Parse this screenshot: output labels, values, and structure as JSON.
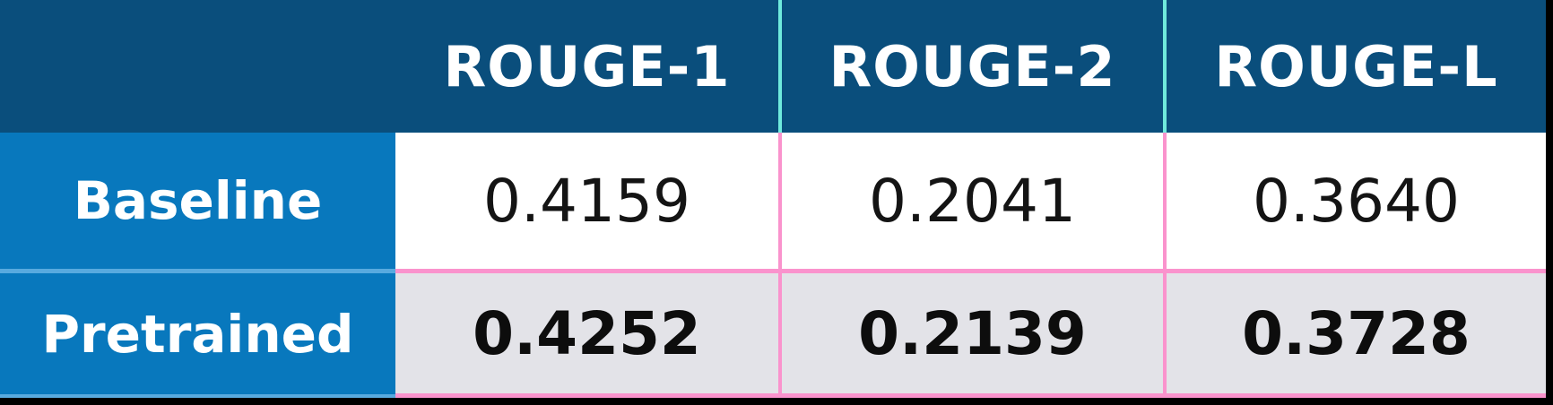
{
  "table": {
    "header": {
      "corner": "",
      "columns": [
        "ROUGE-1",
        "ROUGE-2",
        "ROUGE-L"
      ]
    },
    "rows": [
      {
        "label": "Baseline",
        "values": [
          "0.4159",
          "0.2041",
          "0.3640"
        ]
      },
      {
        "label": "Pretrained",
        "values": [
          "0.4252",
          "0.2139",
          "0.3728"
        ]
      }
    ]
  },
  "chart_data": {
    "type": "table",
    "columns": [
      "",
      "ROUGE-1",
      "ROUGE-2",
      "ROUGE-L"
    ],
    "rows": [
      [
        "Baseline",
        0.4159,
        0.2041,
        0.364
      ],
      [
        "Pretrained",
        0.4252,
        0.2139,
        0.3728
      ]
    ],
    "emphasis": "Pretrained row values rendered bold on gray background"
  },
  "colors": {
    "header_bg": "#0a4e7c",
    "row_label_bg": "#0878bd",
    "header_divider": "#6feadd",
    "body_divider_pink": "#fa93cd",
    "label_row_divider": "#58aadf",
    "alt_row_bg": "#e3e3e8",
    "outer_border": "#000000",
    "header_text": "#ffffff",
    "value_text": "#141414"
  }
}
